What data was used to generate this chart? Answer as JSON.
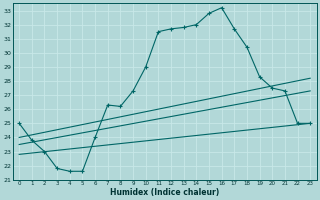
{
  "xlabel": "Humidex (Indice chaleur)",
  "bg_color": "#b2d8d8",
  "grid_color": "#d4eeee",
  "line_color": "#006666",
  "xlim": [
    -0.5,
    23.5
  ],
  "ylim": [
    21,
    33.5
  ],
  "yticks": [
    21,
    22,
    23,
    24,
    25,
    26,
    27,
    28,
    29,
    30,
    31,
    32,
    33
  ],
  "xticks": [
    0,
    1,
    2,
    3,
    4,
    5,
    6,
    7,
    8,
    9,
    10,
    11,
    12,
    13,
    14,
    15,
    16,
    17,
    18,
    19,
    20,
    21,
    22,
    23
  ],
  "main_x": [
    0,
    1,
    2,
    3,
    4,
    5,
    6,
    7,
    8,
    9,
    10,
    11,
    12,
    13,
    14,
    15,
    16,
    17,
    18,
    19,
    20,
    21,
    22,
    23
  ],
  "main_y": [
    25.0,
    23.8,
    23.0,
    21.8,
    21.6,
    21.6,
    24.0,
    26.3,
    26.2,
    27.3,
    29.0,
    31.5,
    31.7,
    31.8,
    32.0,
    32.8,
    33.2,
    31.7,
    30.4,
    28.3,
    27.5,
    27.3,
    25.0,
    25.0
  ],
  "trend1_x": [
    0,
    23
  ],
  "trend1_y": [
    22.8,
    25.0
  ],
  "trend2_x": [
    0,
    23
  ],
  "trend2_y": [
    23.5,
    27.3
  ],
  "trend3_x": [
    0,
    23
  ],
  "trend3_y": [
    24.0,
    28.2
  ]
}
